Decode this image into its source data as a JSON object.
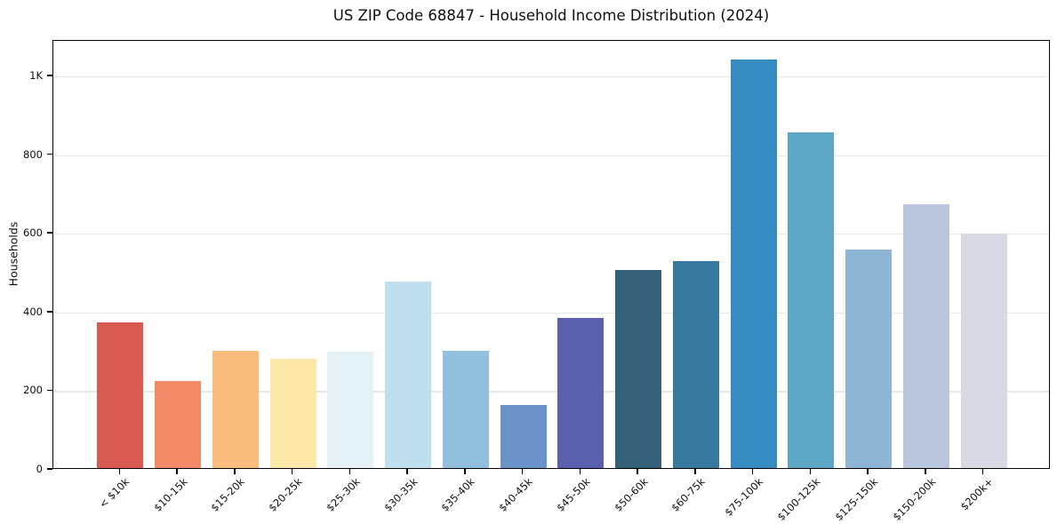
{
  "chart_data": {
    "type": "bar",
    "title": "US ZIP Code 68847 - Household Income Distribution (2024)",
    "xlabel": "",
    "ylabel": "Households",
    "categories": [
      "< $10k",
      "$10-15k",
      "$15-20k",
      "$20-25k",
      "$25-30k",
      "$30-35k",
      "$35-40k",
      "$40-45k",
      "$45-50k",
      "$50-60k",
      "$60-75k",
      "$75-100k",
      "$100-125k",
      "$125-150k",
      "$150-200k",
      "$200k+"
    ],
    "values": [
      370,
      221,
      298,
      278,
      296,
      474,
      298,
      160,
      382,
      503,
      526,
      1038,
      854,
      556,
      670,
      595
    ],
    "bar_colors": [
      "#d95b52",
      "#f28a67",
      "#fbbd7d",
      "#fce8a9",
      "#e4f1f6",
      "#bfdfee",
      "#92bfdd",
      "#6b93c8",
      "#5a5fae",
      "#356178",
      "#36789e",
      "#368cc1",
      "#5ea6c5",
      "#8fb5d4",
      "#b9c6dd",
      "#d7d9e5"
    ],
    "ylim": [
      0,
      1090
    ],
    "yticks": [
      {
        "value": 0,
        "label": "0"
      },
      {
        "value": 200,
        "label": "200"
      },
      {
        "value": 400,
        "label": "400"
      },
      {
        "value": 600,
        "label": "600"
      },
      {
        "value": 800,
        "label": "800"
      },
      {
        "value": 1000,
        "label": "1K"
      }
    ],
    "grid": "horizontal",
    "gridline_color": "#e8e8ec",
    "legend": "none",
    "background_color": "#ffffff"
  }
}
